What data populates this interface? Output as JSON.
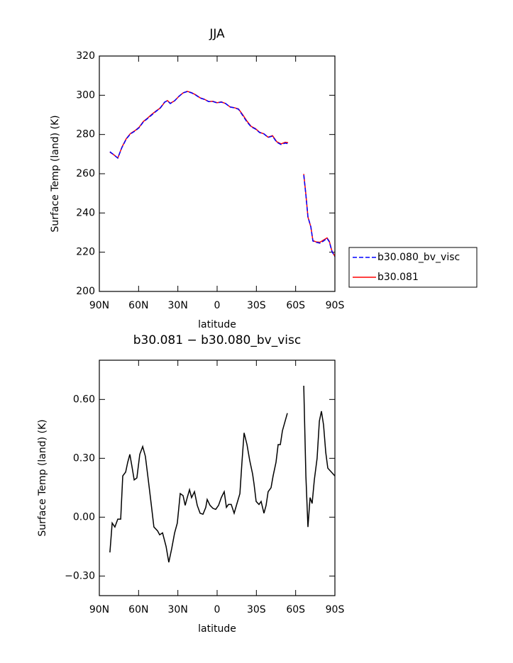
{
  "chart_data": [
    {
      "type": "line",
      "title": "JJA",
      "xlabel": "latitude",
      "ylabel": "Surface Temp (land) (K)",
      "x": [
        81.9,
        79.2,
        75.9,
        72.7,
        69.4,
        66.2,
        62.9,
        59.6,
        56.4,
        53.1,
        49.9,
        46.6,
        43.4,
        40.1,
        38.0,
        35.8,
        32.5,
        29.3,
        26.0,
        22.8,
        19.5,
        16.3,
        13.0,
        9.8,
        6.5,
        3.2,
        0.0,
        -3.2,
        -6.5,
        -9.8,
        -13.0,
        -16.3,
        -19.5,
        -22.8,
        -26.0,
        -29.3,
        -32.5,
        -35.8,
        -39.0,
        -42.3,
        -45.6,
        -48.8,
        -52.1,
        -54.2,
        -60,
        -66.2,
        -67.8,
        -69.4,
        -71.6,
        -73.2,
        -75.9,
        -78.6,
        -81.3,
        -84.0,
        -85.7,
        -87.8,
        -90
      ],
      "series": [
        {
          "name": "b30.080_bv_visc",
          "color": "#0000ff",
          "dash": true,
          "values": [
            271.2,
            269.8,
            268.0,
            273.4,
            277.7,
            280.3,
            281.7,
            283.5,
            286.4,
            288.2,
            290.0,
            291.8,
            293.6,
            296.5,
            297.2,
            295.8,
            297.2,
            299.4,
            301.2,
            301.9,
            301.2,
            300.1,
            298.6,
            297.9,
            296.8,
            296.8,
            296.1,
            296.5,
            295.8,
            294.0,
            293.6,
            292.9,
            289.7,
            286.4,
            283.9,
            282.8,
            281.0,
            280.3,
            278.5,
            279.2,
            276.0,
            274.9,
            275.6,
            275.3,
            null,
            259.3,
            249.2,
            238.0,
            232.9,
            225.7,
            225.0,
            224.6,
            225.7,
            227.1,
            225.3,
            220.3,
            217.7
          ]
        },
        {
          "name": "b30.081",
          "color": "#ff0000",
          "dash": false,
          "values": [
            271.0,
            269.8,
            268.0,
            273.6,
            277.9,
            280.5,
            281.9,
            283.7,
            286.6,
            288.4,
            290.3,
            292.0,
            293.5,
            296.4,
            297.3,
            295.9,
            297.2,
            299.4,
            301.2,
            302.0,
            301.3,
            300.2,
            298.7,
            298.0,
            296.8,
            296.9,
            296.2,
            296.6,
            295.8,
            294.1,
            293.7,
            293.0,
            290.1,
            286.8,
            284.1,
            283.0,
            281.1,
            280.3,
            278.6,
            279.4,
            276.3,
            275.2,
            276.0,
            275.8,
            null,
            259.9,
            249.4,
            237.9,
            232.9,
            225.9,
            225.2,
            225.1,
            226.2,
            227.3,
            225.6,
            220.5,
            217.9
          ]
        }
      ],
      "xlim": [
        90,
        -90
      ],
      "xticks": [
        {
          "value": 90,
          "label": "90N"
        },
        {
          "value": 60,
          "label": "60N"
        },
        {
          "value": 30,
          "label": "30N"
        },
        0,
        {
          "value": -30,
          "label": "30S"
        },
        {
          "value": -60,
          "label": "60S"
        },
        {
          "value": -90,
          "label": "90S"
        }
      ],
      "ylim": [
        200,
        320
      ],
      "yticks": [
        200,
        220,
        240,
        260,
        280,
        300,
        320
      ],
      "legend": "right"
    },
    {
      "type": "line",
      "title": "b30.081 − b30.080_bv_visc",
      "xlabel": "latitude",
      "ylabel": "Surface Temp (land) (K)",
      "color": "#000000",
      "x": [
        81.9,
        80.2,
        78.1,
        75.9,
        73.7,
        72.1,
        69.9,
        68.3,
        66.7,
        65.1,
        63.4,
        61.3,
        59.1,
        56.9,
        54.8,
        52.6,
        50.4,
        48.3,
        45.5,
        43.9,
        41.7,
        39.0,
        36.9,
        34.7,
        32.5,
        30.4,
        28.2,
        26.0,
        24.4,
        22.8,
        21.1,
        19.5,
        17.3,
        15.2,
        13.0,
        10.8,
        8.7,
        7.6,
        5.4,
        3.2,
        1.1,
        -1.1,
        -3.2,
        -5.4,
        -7.1,
        -8.7,
        -10.8,
        -13.0,
        -15.2,
        -17.4,
        -19.0,
        -20.6,
        -22.8,
        -24.9,
        -27.1,
        -28.2,
        -29.8,
        -32.0,
        -33.6,
        -35.8,
        -37.4,
        -39.0,
        -41.2,
        -42.8,
        -45.0,
        -46.6,
        -48.3,
        -49.9,
        -53.7,
        -60,
        -66.2,
        -67.8,
        -69.4,
        -71.0,
        -72.6,
        -74.3,
        -76.4,
        -78.1,
        -79.7,
        -81.3,
        -83.0,
        -84.6,
        -90
      ],
      "values": [
        -0.18,
        -0.03,
        -0.05,
        -0.01,
        -0.01,
        0.21,
        0.23,
        0.28,
        0.32,
        0.26,
        0.19,
        0.2,
        0.32,
        0.36,
        0.31,
        0.19,
        0.07,
        -0.05,
        -0.07,
        -0.09,
        -0.08,
        -0.15,
        -0.23,
        -0.16,
        -0.08,
        -0.03,
        0.12,
        0.11,
        0.06,
        0.1,
        0.14,
        0.1,
        0.13,
        0.06,
        0.02,
        0.015,
        0.05,
        0.09,
        0.06,
        0.045,
        0.04,
        0.06,
        0.1,
        0.13,
        0.05,
        0.065,
        0.065,
        0.02,
        0.07,
        0.12,
        0.28,
        0.43,
        0.37,
        0.29,
        0.22,
        0.17,
        0.08,
        0.065,
        0.08,
        0.02,
        0.06,
        0.13,
        0.15,
        0.21,
        0.28,
        0.37,
        0.37,
        0.44,
        0.53,
        null,
        0.67,
        0.21,
        -0.05,
        0.1,
        0.07,
        0.19,
        0.3,
        0.49,
        0.54,
        0.47,
        0.33,
        0.25,
        0.21
      ],
      "xlim": [
        90,
        -90
      ],
      "xticks": [
        {
          "value": 90,
          "label": "90N"
        },
        {
          "value": 60,
          "label": "60N"
        },
        {
          "value": 30,
          "label": "30N"
        },
        0,
        {
          "value": -30,
          "label": "30S"
        },
        {
          "value": -60,
          "label": "60S"
        },
        {
          "value": -90,
          "label": "90S"
        }
      ],
      "ylim": [
        -0.4,
        0.8
      ],
      "yticks": [
        {
          "value": -0.3,
          "label": "−0.30"
        },
        {
          "value": 0,
          "label": "0.00"
        },
        {
          "value": 0.3,
          "label": "0.30"
        },
        {
          "value": 0.6,
          "label": "0.60"
        }
      ]
    }
  ]
}
